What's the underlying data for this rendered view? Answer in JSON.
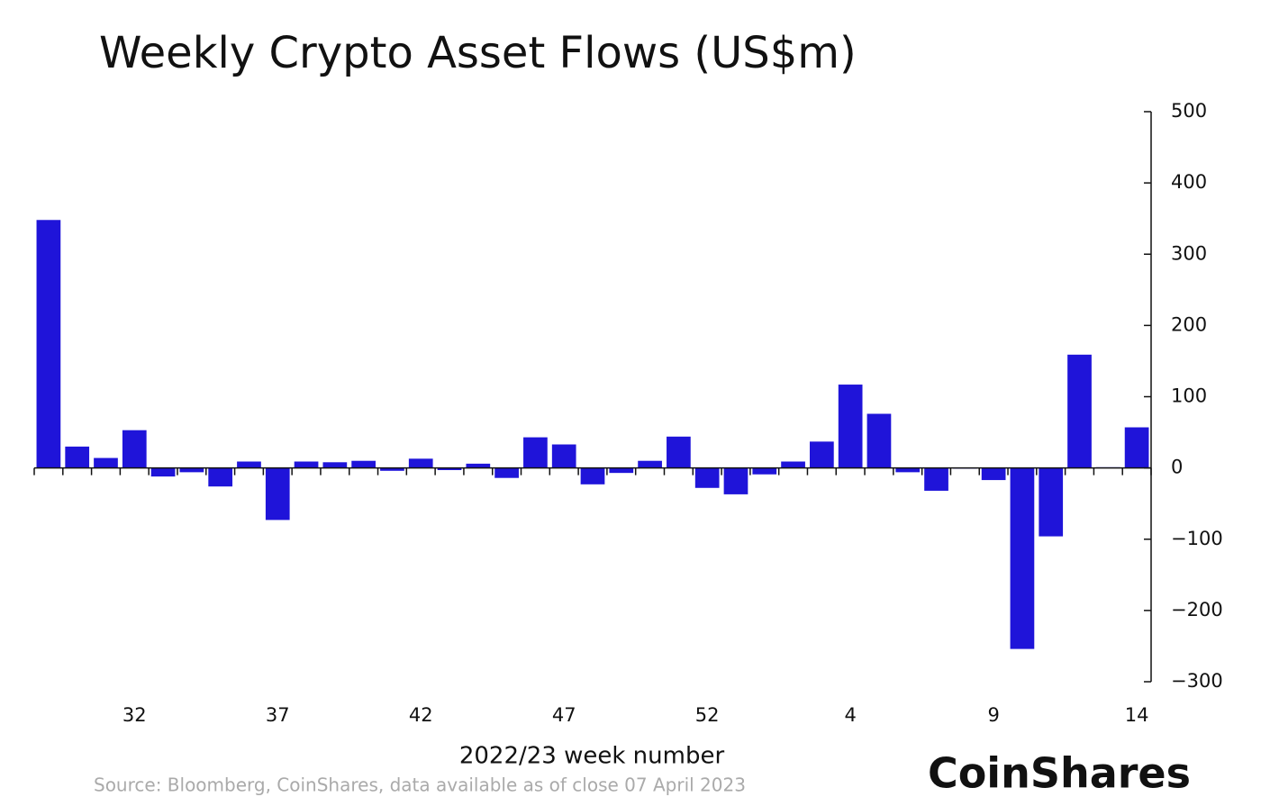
{
  "chart_data": {
    "type": "bar",
    "title": "Weekly Crypto Asset Flows (US$m)",
    "x_label": "2022/23 week number",
    "source": "Source: Bloomberg, CoinShares, data available as of close 07 April 2023",
    "brand": "CoinShares",
    "categories": [
      null,
      null,
      null,
      "32",
      null,
      null,
      null,
      null,
      "37",
      null,
      null,
      null,
      null,
      "42",
      null,
      null,
      null,
      null,
      "47",
      null,
      null,
      null,
      null,
      "52",
      null,
      null,
      null,
      null,
      "4",
      null,
      null,
      null,
      null,
      "9",
      null,
      null,
      null,
      null,
      "14"
    ],
    "values": [
      348,
      30,
      14,
      53,
      -12,
      -6,
      -26,
      9,
      -73,
      9,
      8,
      10,
      -4,
      13,
      -3,
      6,
      -14,
      43,
      33,
      -23,
      -7,
      10,
      44,
      -28,
      -37,
      -9,
      9,
      37,
      117,
      76,
      -6,
      -32,
      -1,
      -17,
      -254,
      -96,
      159,
      1,
      57
    ],
    "color": "#1f14d9",
    "ylim": [
      -300,
      500
    ],
    "yticks": [
      {
        "value": -300,
        "label": "−300"
      },
      {
        "value": -200,
        "label": "−200"
      },
      {
        "value": -100,
        "label": "−100"
      },
      0,
      100,
      200,
      300,
      400,
      500
    ],
    "grid": false
  }
}
